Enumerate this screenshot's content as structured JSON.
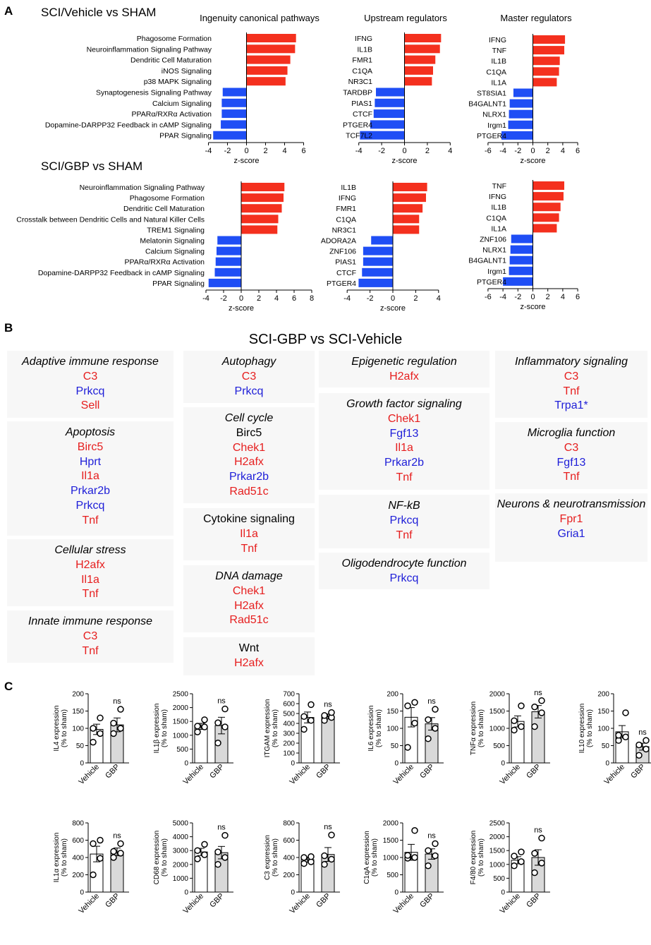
{
  "panel_labels": {
    "a": "A",
    "b": "B",
    "c": "C"
  },
  "colors": {
    "up": "#f4301e",
    "down": "#1f4ef5",
    "gene_up": "#e61e1e",
    "gene_down": "#1e1ed8",
    "gene_neutral": "#000000",
    "bar_vehicle": "#ffffff",
    "bar_gbp": "#d9d9d9"
  },
  "panel_a": {
    "row_titles": [
      "SCI/Vehicle vs SHAM",
      "SCI/GBP vs SHAM"
    ],
    "column_titles": [
      "Ingenuity canonical pathways",
      "Upstream regulators",
      "Master regulators"
    ]
  },
  "panel_b": {
    "title": "SCI-GBP vs SCI-Vehicle",
    "boxes": [
      {
        "heading": "Adaptive immune response",
        "italic": true,
        "genes": [
          {
            "name": "C3",
            "dir": "up"
          },
          {
            "name": "Prkcq",
            "dir": "down"
          },
          {
            "name": "Sell",
            "dir": "up"
          }
        ]
      },
      {
        "heading": "Apoptosis",
        "italic": true,
        "genes": [
          {
            "name": "Birc5",
            "dir": "up"
          },
          {
            "name": "Hprt",
            "dir": "down"
          },
          {
            "name": "Il1a",
            "dir": "up"
          },
          {
            "name": "Prkar2b",
            "dir": "down"
          },
          {
            "name": "Prkcq",
            "dir": "down"
          },
          {
            "name": "Tnf",
            "dir": "up"
          }
        ]
      },
      {
        "heading": "Cellular stress",
        "italic": true,
        "genes": [
          {
            "name": "H2afx",
            "dir": "up"
          },
          {
            "name": "Il1a",
            "dir": "up"
          },
          {
            "name": "Tnf",
            "dir": "up"
          }
        ]
      },
      {
        "heading": "Innate immune response",
        "italic": true,
        "genes": [
          {
            "name": "C3",
            "dir": "up"
          },
          {
            "name": "Tnf",
            "dir": "up"
          }
        ]
      },
      {
        "heading": "Autophagy",
        "italic": true,
        "genes": [
          {
            "name": "C3",
            "dir": "up"
          },
          {
            "name": "Prkcq",
            "dir": "down"
          }
        ]
      },
      {
        "heading": "Cell cycle",
        "italic": true,
        "genes": [
          {
            "name": "Birc5",
            "dir": "neutral"
          },
          {
            "name": "Chek1",
            "dir": "up"
          },
          {
            "name": "H2afx",
            "dir": "up"
          },
          {
            "name": "Prkar2b",
            "dir": "down"
          },
          {
            "name": "Rad51c",
            "dir": "up"
          }
        ]
      },
      {
        "heading": "Cytokine signaling",
        "italic": false,
        "genes": [
          {
            "name": "Il1a",
            "dir": "up"
          },
          {
            "name": "Tnf",
            "dir": "up"
          }
        ]
      },
      {
        "heading": "DNA damage",
        "italic": true,
        "genes": [
          {
            "name": "Chek1",
            "dir": "up"
          },
          {
            "name": "H2afx",
            "dir": "up"
          },
          {
            "name": "Rad51c",
            "dir": "up"
          }
        ]
      },
      {
        "heading": "Wnt",
        "italic": false,
        "genes": [
          {
            "name": "H2afx",
            "dir": "up"
          }
        ]
      },
      {
        "heading": "Epigenetic regulation",
        "italic": true,
        "genes": [
          {
            "name": "H2afx",
            "dir": "up"
          }
        ]
      },
      {
        "heading": "Growth factor signaling",
        "italic": true,
        "genes": [
          {
            "name": "Chek1",
            "dir": "up"
          },
          {
            "name": "Fgf13",
            "dir": "down"
          },
          {
            "name": "Il1a",
            "dir": "up"
          },
          {
            "name": "Prkar2b",
            "dir": "down"
          },
          {
            "name": "Tnf",
            "dir": "up"
          }
        ]
      },
      {
        "heading": "NF-kB",
        "italic": true,
        "genes": [
          {
            "name": "Prkcq",
            "dir": "down"
          },
          {
            "name": "Tnf",
            "dir": "up"
          }
        ]
      },
      {
        "heading": "Oligodendrocyte function",
        "italic": true,
        "genes": [
          {
            "name": "Prkcq",
            "dir": "down"
          }
        ]
      },
      {
        "heading": "Inflammatory signaling",
        "italic": true,
        "genes": [
          {
            "name": "C3",
            "dir": "up"
          },
          {
            "name": "Tnf",
            "dir": "up"
          },
          {
            "name": "Trpa1*",
            "dir": "down"
          }
        ]
      },
      {
        "heading": "Microglia function",
        "italic": true,
        "genes": [
          {
            "name": "C3",
            "dir": "up"
          },
          {
            "name": "Fgf13",
            "dir": "down"
          },
          {
            "name": "Tnf",
            "dir": "up"
          }
        ]
      },
      {
        "heading": "Neurons & neurotransmission",
        "italic": true,
        "genes": [
          {
            "name": "Fpr1",
            "dir": "up"
          },
          {
            "name": "Gria1",
            "dir": "down"
          }
        ]
      }
    ]
  },
  "chart_data": [
    {
      "type": "bar",
      "orientation": "horizontal",
      "panel": "A",
      "title": "Ingenuity canonical pathways",
      "group": "SCI/Vehicle vs SHAM",
      "xlabel": "z-score",
      "xlim": [
        -4,
        6
      ],
      "xticks": [
        -4,
        -2,
        0,
        2,
        4,
        6
      ],
      "categories": [
        "Phagosome Formation",
        "Neuroinflammation Signaling Pathway",
        "Dendritic Cell Maturation",
        "iNOS Signaling",
        "p38 MAPK Signaling",
        "Synaptogenesis Signaling Pathway",
        "Calcium Signaling",
        "PPARα/RXRα Activation",
        "Dopamine-DARPP32 Feedback in cAMP Signaling",
        "PPAR Signaling"
      ],
      "values": [
        5.2,
        5.1,
        4.6,
        4.3,
        4.1,
        -2.5,
        -2.6,
        -2.6,
        -2.7,
        -3.5
      ]
    },
    {
      "type": "bar",
      "orientation": "horizontal",
      "panel": "A",
      "title": "Upstream regulators",
      "group": "SCI/Vehicle vs SHAM",
      "xlabel": "z-score",
      "xlim": [
        -4,
        4
      ],
      "xticks": [
        -4,
        -2,
        0,
        2,
        4
      ],
      "categories": [
        "IFNG",
        "IL1B",
        "FMR1",
        "C1QA",
        "NR3C1",
        "TARDBP",
        "PIAS1",
        "CTCF",
        "PTGER4",
        "TCF7L2"
      ],
      "values": [
        3.2,
        3.1,
        2.7,
        2.5,
        2.4,
        -2.5,
        -2.6,
        -2.7,
        -3.0,
        -3.9
      ]
    },
    {
      "type": "bar",
      "orientation": "horizontal",
      "panel": "A",
      "title": "Master regulators",
      "group": "SCI/Vehicle vs SHAM",
      "xlabel": "z-score",
      "xlim": [
        -6,
        6
      ],
      "xticks": [
        -6,
        -4,
        -2,
        0,
        2,
        4,
        6
      ],
      "categories": [
        "IFNG",
        "TNF",
        "IL1B",
        "C1QA",
        "IL1A",
        "ST8SIA1",
        "B4GALNT1",
        "NLRX1",
        "Irgm1",
        "PTGER4"
      ],
      "values": [
        4.3,
        4.2,
        3.6,
        3.5,
        3.2,
        -2.6,
        -3.1,
        -3.2,
        -3.3,
        -4.2
      ]
    },
    {
      "type": "bar",
      "orientation": "horizontal",
      "panel": "A",
      "title": "Ingenuity canonical pathways",
      "group": "SCI/GBP vs SHAM",
      "xlabel": "z-score",
      "xlim": [
        -4,
        8
      ],
      "xticks": [
        -4,
        -2,
        0,
        2,
        4,
        6,
        8
      ],
      "categories": [
        "Neuroinflammation Signaling Pathway",
        "Phagosome Formation",
        "Dendritic Cell Maturation",
        "Crosstalk between Dendritic Cells and Natural Killer Cells",
        "TREM1 Signaling",
        "Melatonin Signaling",
        "Calcium Signaling",
        "PPARα/RXRα Activation",
        "Dopamine-DARPP32 Feedback in cAMP Signaling",
        "PPAR Signaling"
      ],
      "values": [
        4.9,
        4.8,
        4.6,
        4.2,
        4.1,
        -2.7,
        -2.8,
        -2.9,
        -3.0,
        -3.7
      ]
    },
    {
      "type": "bar",
      "orientation": "horizontal",
      "panel": "A",
      "title": "Upstream regulators",
      "group": "SCI/GBP vs SHAM",
      "xlabel": "z-score",
      "xlim": [
        -4,
        4
      ],
      "xticks": [
        -4,
        -2,
        0,
        2,
        4
      ],
      "categories": [
        "IL1B",
        "IFNG",
        "FMR1",
        "C1QA",
        "NR3C1",
        "ADORA2A",
        "ZNF106",
        "PIAS1",
        "CTCF",
        "PTGER4"
      ],
      "values": [
        3.0,
        2.9,
        2.6,
        2.3,
        2.3,
        -1.9,
        -2.6,
        -2.6,
        -2.7,
        -3.0
      ]
    },
    {
      "type": "bar",
      "orientation": "horizontal",
      "panel": "A",
      "title": "Master regulators",
      "group": "SCI/GBP vs SHAM",
      "xlabel": "z-score",
      "xlim": [
        -6,
        6
      ],
      "xticks": [
        -6,
        -4,
        -2,
        0,
        2,
        4,
        6
      ],
      "categories": [
        "TNF",
        "IFNG",
        "IL1B",
        "C1QA",
        "IL1A",
        "ZNF106",
        "NLRX1",
        "B4GALNT1",
        "Irgm1",
        "PTGER4"
      ],
      "values": [
        4.2,
        4.1,
        3.7,
        3.5,
        3.2,
        -2.9,
        -3.0,
        -3.1,
        -3.2,
        -4.0
      ]
    },
    {
      "type": "bar",
      "panel": "C",
      "ylabel": [
        "IL4 expression",
        "(% to sham)"
      ],
      "ylim": [
        0,
        200
      ],
      "yticks": [
        0,
        50,
        100,
        150,
        200
      ],
      "categories": [
        "Vehicle",
        "GBP"
      ],
      "values": [
        97,
        110
      ],
      "sem": [
        15,
        20
      ],
      "points": [
        [
          60,
          85,
          100,
          130
        ],
        [
          85,
          100,
          115,
          155
        ]
      ],
      "annotation": "ns"
    },
    {
      "type": "bar",
      "panel": "C",
      "ylabel": [
        "IL1β expression",
        "(% to sham)"
      ],
      "ylim": [
        0,
        2500
      ],
      "yticks": [
        0,
        500,
        1000,
        1500,
        2000,
        2500
      ],
      "categories": [
        "Vehicle",
        "GBP"
      ],
      "values": [
        1320,
        1350
      ],
      "sem": [
        110,
        300
      ],
      "points": [
        [
          1120,
          1300,
          1330,
          1560
        ],
        [
          720,
          1300,
          1450,
          1950
        ]
      ],
      "annotation": "ns"
    },
    {
      "type": "bar",
      "panel": "C",
      "ylabel": [
        "ITGAM expression",
        "(% to sham)"
      ],
      "ylim": [
        0,
        700
      ],
      "yticks": [
        0,
        100,
        200,
        300,
        400,
        500,
        600,
        700
      ],
      "categories": [
        "Vehicle",
        "GBP"
      ],
      "values": [
        460,
        470
      ],
      "sem": [
        55,
        25
      ],
      "points": [
        [
          340,
          430,
          470,
          590
        ],
        [
          430,
          460,
          480,
          510
        ]
      ],
      "annotation": "ns"
    },
    {
      "type": "bar",
      "panel": "C",
      "ylabel": [
        "IL6 expression",
        "(% to sham)"
      ],
      "ylim": [
        0,
        200
      ],
      "yticks": [
        0,
        50,
        100,
        150,
        200
      ],
      "categories": [
        "Vehicle",
        "GBP"
      ],
      "values": [
        132,
        113
      ],
      "sem": [
        28,
        18
      ],
      "points": [
        [
          45,
          115,
          165,
          175
        ],
        [
          70,
          100,
          125,
          155
        ]
      ],
      "annotation": "ns"
    },
    {
      "type": "bar",
      "panel": "C",
      "ylabel": [
        "TNFα expression",
        "(% to sham)"
      ],
      "ylim": [
        0,
        2000
      ],
      "yticks": [
        0,
        500,
        1000,
        1500,
        2000
      ],
      "categories": [
        "Vehicle",
        "GBP"
      ],
      "values": [
        1200,
        1480
      ],
      "sem": [
        160,
        180
      ],
      "points": [
        [
          950,
          1050,
          1220,
          1650
        ],
        [
          1050,
          1450,
          1620,
          1800
        ]
      ],
      "annotation": "ns"
    },
    {
      "type": "bar",
      "panel": "C",
      "ylabel": [
        "IL10 expression",
        "(% to sham)"
      ],
      "ylim": [
        0,
        200
      ],
      "yticks": [
        0,
        50,
        100,
        150,
        200
      ],
      "categories": [
        "Vehicle",
        "GBP"
      ],
      "values": [
        90,
        47
      ],
      "sem": [
        18,
        10
      ],
      "points": [
        [
          65,
          75,
          80,
          145
        ],
        [
          22,
          40,
          52,
          65
        ]
      ],
      "annotation": "ns"
    },
    {
      "type": "bar",
      "panel": "C",
      "ylabel": [
        "IL1α expression",
        "(% to sham)"
      ],
      "ylim": [
        0,
        800
      ],
      "yticks": [
        0,
        200,
        400,
        600,
        800
      ],
      "categories": [
        "Vehicle",
        "GBP"
      ],
      "values": [
        440,
        465
      ],
      "sem": [
        90,
        45
      ],
      "points": [
        [
          200,
          390,
          560,
          600
        ],
        [
          400,
          450,
          470,
          560
        ]
      ],
      "annotation": "ns"
    },
    {
      "type": "bar",
      "panel": "C",
      "ylabel": [
        "CD68 expression",
        "(% to sham)"
      ],
      "ylim": [
        0,
        5000
      ],
      "yticks": [
        0,
        1000,
        2000,
        3000,
        4000,
        5000
      ],
      "categories": [
        "Vehicle",
        "GBP"
      ],
      "values": [
        2900,
        2850
      ],
      "sem": [
        260,
        450
      ],
      "points": [
        [
          2400,
          2700,
          3000,
          3450
        ],
        [
          2000,
          2500,
          2900,
          4100
        ]
      ],
      "annotation": "ns"
    },
    {
      "type": "bar",
      "panel": "C",
      "ylabel": [
        "C3 expression",
        "(% to sham)"
      ],
      "ylim": [
        0,
        800
      ],
      "yticks": [
        0,
        200,
        400,
        600,
        800
      ],
      "categories": [
        "Vehicle",
        "GBP"
      ],
      "values": [
        375,
        435
      ],
      "sem": [
        30,
        80
      ],
      "points": [
        [
          330,
          350,
          400,
          410
        ],
        [
          320,
          380,
          420,
          660
        ]
      ],
      "annotation": "ns"
    },
    {
      "type": "bar",
      "panel": "C",
      "ylabel": [
        "C1qA expression",
        "(% to sham)"
      ],
      "ylim": [
        0,
        2000
      ],
      "yticks": [
        0,
        500,
        1000,
        1500,
        2000
      ],
      "categories": [
        "Vehicle",
        "GBP"
      ],
      "values": [
        1150,
        1100
      ],
      "sem": [
        230,
        150
      ],
      "points": [
        [
          980,
          1000,
          1060,
          1780
        ],
        [
          760,
          1050,
          1200,
          1400
        ]
      ],
      "annotation": "ns"
    },
    {
      "type": "bar",
      "panel": "C",
      "ylabel": [
        "F4/80 expression",
        "(% to sham)"
      ],
      "ylim": [
        0,
        2500
      ],
      "yticks": [
        0,
        500,
        1000,
        1500,
        2000,
        2500
      ],
      "categories": [
        "Vehicle",
        "GBP"
      ],
      "values": [
        1150,
        1250
      ],
      "sem": [
        130,
        280
      ],
      "points": [
        [
          950,
          1100,
          1300,
          1450
        ],
        [
          700,
          1050,
          1400,
          1950
        ]
      ],
      "annotation": "ns"
    }
  ]
}
